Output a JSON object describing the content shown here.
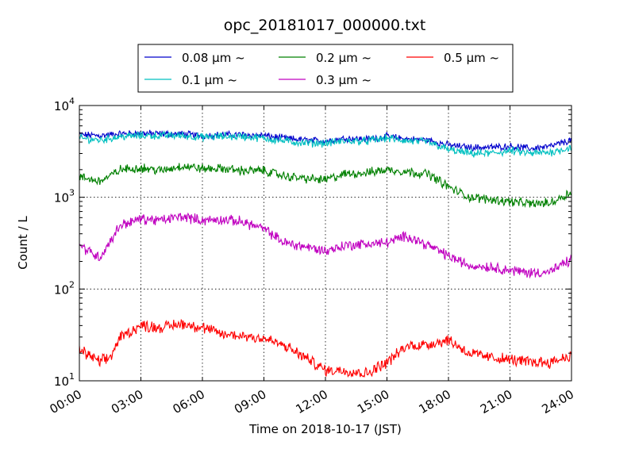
{
  "chart_data": {
    "type": "line",
    "title": "opc_20181017_000000.txt",
    "xlabel": "Time on 2018-10-17 (JST)",
    "ylabel": "Count / L",
    "xlim": [
      "00:00",
      "24:00"
    ],
    "x_ticks": [
      "00:00",
      "03:00",
      "06:00",
      "09:00",
      "12:00",
      "15:00",
      "18:00",
      "21:00",
      "24:00"
    ],
    "ylim": [
      10,
      10000
    ],
    "yscale": "log",
    "y_ticks": [
      {
        "base": "10",
        "exp": "1"
      },
      {
        "base": "10",
        "exp": "2"
      },
      {
        "base": "10",
        "exp": "3"
      },
      {
        "base": "10",
        "exp": "4"
      }
    ],
    "grid": true,
    "legend_placement": "top-center",
    "x_hours": [
      0,
      1,
      1.5,
      2,
      3,
      4,
      5,
      6,
      7,
      8,
      9,
      10,
      11,
      12,
      13,
      14,
      15,
      16,
      17,
      18,
      19,
      20,
      21,
      22,
      23,
      24
    ],
    "series": [
      {
        "name": "0.08 μm ~",
        "color": "#0000cc",
        "values": [
          4800,
          4700,
          4800,
          4900,
          5000,
          4900,
          4900,
          4700,
          4800,
          4800,
          4700,
          4400,
          4200,
          4100,
          4400,
          4300,
          4600,
          4300,
          4200,
          3700,
          3500,
          3500,
          3600,
          3400,
          3600,
          4200
        ]
      },
      {
        "name": "0.1 μm ~",
        "color": "#00c0c0",
        "values": [
          4400,
          4200,
          4400,
          4600,
          4700,
          4700,
          4700,
          4500,
          4600,
          4600,
          4400,
          4100,
          3900,
          3900,
          4100,
          4100,
          4400,
          4100,
          4000,
          3300,
          3000,
          3000,
          3200,
          3000,
          3100,
          3500
        ]
      },
      {
        "name": "0.2 μm ~",
        "color": "#008000",
        "values": [
          1650,
          1500,
          1700,
          2000,
          2100,
          1950,
          2200,
          2050,
          2050,
          1950,
          1950,
          1700,
          1600,
          1550,
          1800,
          1850,
          2000,
          1900,
          1800,
          1300,
          1000,
          950,
          900,
          850,
          870,
          1150
        ]
      },
      {
        "name": "0.3 μm ~",
        "color": "#c000c0",
        "values": [
          300,
          220,
          330,
          500,
          580,
          560,
          620,
          560,
          570,
          540,
          450,
          320,
          290,
          260,
          300,
          310,
          320,
          380,
          300,
          230,
          180,
          175,
          160,
          150,
          155,
          210
        ]
      },
      {
        "name": "0.5 μm ~",
        "color": "#ff0000",
        "values": [
          22,
          16,
          18,
          30,
          40,
          38,
          42,
          38,
          32,
          31,
          29,
          24,
          18,
          13,
          13,
          12,
          16,
          24,
          25,
          28,
          20,
          18,
          17,
          16,
          16,
          19
        ]
      }
    ]
  }
}
